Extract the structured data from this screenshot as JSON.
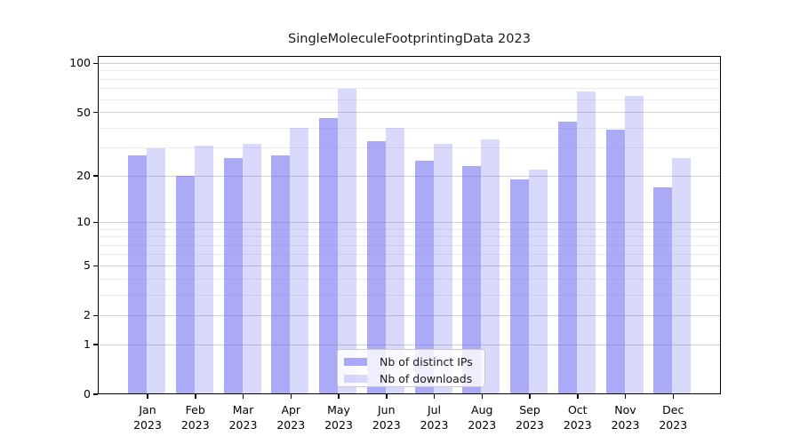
{
  "chart_data": {
    "type": "bar",
    "title": "SingleMoleculeFootprintingData 2023",
    "categories": [
      "Jan",
      "Feb",
      "Mar",
      "Apr",
      "May",
      "Jun",
      "Jul",
      "Aug",
      "Sep",
      "Oct",
      "Nov",
      "Dec"
    ],
    "year_label": "2023",
    "series": [
      {
        "name": "Nb of distinct IPs",
        "color": "rgba(120,120,240,0.63)",
        "values": [
          27,
          20,
          26,
          27,
          46,
          33,
          25,
          23,
          19,
          44,
          39,
          17
        ]
      },
      {
        "name": "Nb of downloads",
        "color": "rgba(120,120,240,0.28)",
        "values": [
          30,
          31,
          32,
          40,
          70,
          40,
          32,
          34,
          22,
          67,
          63,
          26
        ]
      }
    ],
    "yscale": "log1p",
    "ylim": [
      0,
      110
    ],
    "yticks": [
      100,
      50,
      20,
      10,
      5,
      2,
      1,
      0
    ],
    "minor_yticks": [
      3,
      4,
      6,
      7,
      8,
      9,
      30,
      40,
      60,
      70,
      80,
      90
    ],
    "grid": true,
    "legend_position": "lower center",
    "colors": {
      "major_grid": "#cfcfcf",
      "minor_grid": "#ececec",
      "axis": "#000000"
    }
  }
}
